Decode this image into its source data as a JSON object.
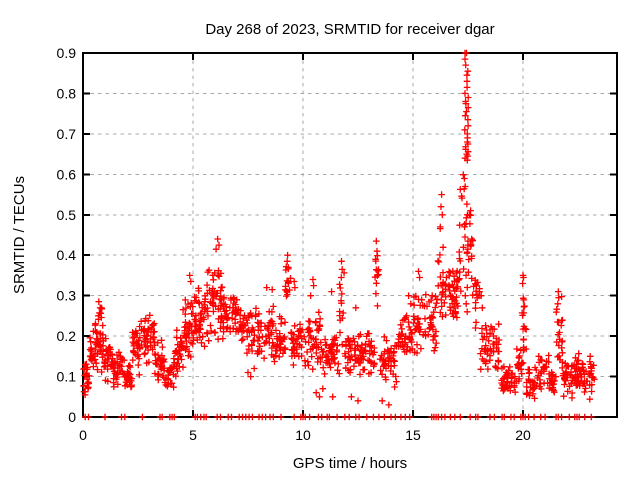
{
  "title": "Day 268 of 2023, SRMTID for receiver dgar",
  "colors": {
    "marker": "#ff0000",
    "grid": "#a8a8a8",
    "axis": "#000000",
    "background": "#ffffff",
    "text": "#000000"
  },
  "chart_data": {
    "type": "scatter",
    "title": "Day 268 of 2023, SRMTID for receiver dgar",
    "xlabel": "GPS time / hours",
    "ylabel": "SRMTID / TECUs",
    "xlim": [
      0,
      24.27
    ],
    "ylim": [
      0,
      0.9
    ],
    "xticks": {
      "values": [
        0,
        5,
        10,
        15,
        20
      ],
      "labels": [
        "0",
        "5",
        "10",
        "15",
        "20"
      ]
    },
    "yticks": {
      "values": [
        0,
        0.1,
        0.2,
        0.3,
        0.4,
        0.5,
        0.6,
        0.7,
        0.8,
        0.9
      ],
      "labels": [
        "0",
        "0.1",
        "0.2",
        "0.3",
        "0.4",
        "0.5",
        "0.6",
        "0.7",
        "0.8",
        "0.9"
      ]
    },
    "grid": true,
    "legend": false,
    "marker": "plus",
    "series_name": "SRMTID",
    "bands_format": [
      "x_start",
      "x_end",
      "count",
      "y_min",
      "y_max"
    ],
    "bands": [
      [
        0.02,
        0.3,
        22,
        0.04,
        0.16
      ],
      [
        0.3,
        0.55,
        18,
        0.08,
        0.22
      ],
      [
        0.55,
        0.95,
        40,
        0.1,
        0.285
      ],
      [
        0.95,
        1.35,
        30,
        0.08,
        0.2
      ],
      [
        1.35,
        1.8,
        32,
        0.07,
        0.17
      ],
      [
        1.8,
        2.25,
        28,
        0.05,
        0.15
      ],
      [
        2.25,
        2.65,
        32,
        0.1,
        0.24
      ],
      [
        2.65,
        3.25,
        42,
        0.12,
        0.27
      ],
      [
        3.25,
        3.65,
        30,
        0.08,
        0.2
      ],
      [
        3.65,
        4.15,
        28,
        0.05,
        0.16
      ],
      [
        4.15,
        4.55,
        28,
        0.07,
        0.22
      ],
      [
        4.55,
        5.0,
        38,
        0.12,
        0.3
      ],
      [
        5.0,
        5.6,
        48,
        0.15,
        0.33
      ],
      [
        5.6,
        6.3,
        52,
        0.18,
        0.41
      ],
      [
        6.3,
        7.0,
        48,
        0.18,
        0.34
      ],
      [
        7.0,
        7.85,
        44,
        0.14,
        0.3
      ],
      [
        7.85,
        8.7,
        48,
        0.13,
        0.29
      ],
      [
        8.7,
        9.2,
        32,
        0.13,
        0.25
      ],
      [
        9.2,
        9.45,
        14,
        0.24,
        0.39
      ],
      [
        9.45,
        10.2,
        42,
        0.12,
        0.24
      ],
      [
        10.2,
        10.8,
        38,
        0.1,
        0.27
      ],
      [
        10.8,
        11.65,
        48,
        0.1,
        0.22
      ],
      [
        11.65,
        11.9,
        13,
        0.15,
        0.37
      ],
      [
        11.9,
        12.6,
        42,
        0.09,
        0.22
      ],
      [
        12.6,
        13.25,
        40,
        0.1,
        0.22
      ],
      [
        13.25,
        13.5,
        11,
        0.24,
        0.42
      ],
      [
        13.5,
        14.3,
        42,
        0.07,
        0.2
      ],
      [
        14.3,
        15.0,
        40,
        0.12,
        0.26
      ],
      [
        15.0,
        15.6,
        34,
        0.14,
        0.33
      ],
      [
        15.6,
        16.1,
        30,
        0.15,
        0.34
      ],
      [
        16.1,
        16.5,
        24,
        0.2,
        0.48
      ],
      [
        16.5,
        17.1,
        40,
        0.22,
        0.4
      ],
      [
        17.1,
        17.45,
        20,
        0.28,
        0.62
      ],
      [
        17.45,
        17.75,
        18,
        0.28,
        0.55
      ],
      [
        17.75,
        18.05,
        16,
        0.2,
        0.42
      ],
      [
        18.05,
        18.95,
        48,
        0.09,
        0.24
      ],
      [
        18.95,
        19.7,
        40,
        0.04,
        0.13
      ],
      [
        19.7,
        19.95,
        16,
        0.08,
        0.2
      ],
      [
        19.95,
        20.15,
        18,
        0.12,
        0.36
      ],
      [
        20.15,
        20.7,
        30,
        0.03,
        0.13
      ],
      [
        20.7,
        21.2,
        26,
        0.05,
        0.17
      ],
      [
        21.2,
        21.5,
        18,
        0.05,
        0.12
      ],
      [
        21.5,
        21.8,
        22,
        0.1,
        0.31
      ],
      [
        21.8,
        22.3,
        30,
        0.04,
        0.15
      ],
      [
        22.3,
        22.75,
        36,
        0.05,
        0.16
      ],
      [
        22.75,
        23.25,
        26,
        0.04,
        0.15
      ]
    ],
    "outliers": [
      [
        0.72,
        0.285
      ],
      [
        0.78,
        0.27
      ],
      [
        4.85,
        0.35
      ],
      [
        4.9,
        0.335
      ],
      [
        6.12,
        0.44
      ],
      [
        6.18,
        0.425
      ],
      [
        6.05,
        0.415
      ],
      [
        7.5,
        0.11
      ],
      [
        7.62,
        0.1
      ],
      [
        7.78,
        0.12
      ],
      [
        8.35,
        0.32
      ],
      [
        8.6,
        0.315
      ],
      [
        9.3,
        0.4
      ],
      [
        9.28,
        0.385
      ],
      [
        9.33,
        0.37
      ],
      [
        9.6,
        0.335
      ],
      [
        9.63,
        0.32
      ],
      [
        10.45,
        0.34
      ],
      [
        10.48,
        0.325
      ],
      [
        10.35,
        0.3
      ],
      [
        10.6,
        0.06
      ],
      [
        10.75,
        0.05
      ],
      [
        10.9,
        0.07
      ],
      [
        11.3,
        0.31
      ],
      [
        11.35,
        0.05
      ],
      [
        11.75,
        0.385
      ],
      [
        11.78,
        0.365
      ],
      [
        11.74,
        0.345
      ],
      [
        12.2,
        0.05
      ],
      [
        12.4,
        0.27
      ],
      [
        12.5,
        0.04
      ],
      [
        13.33,
        0.435
      ],
      [
        13.36,
        0.41
      ],
      [
        13.3,
        0.39
      ],
      [
        13.6,
        0.04
      ],
      [
        13.9,
        0.03
      ],
      [
        14.8,
        0.3
      ],
      [
        14.9,
        0.28
      ],
      [
        15.25,
        0.36
      ],
      [
        15.3,
        0.345
      ],
      [
        16.3,
        0.55
      ],
      [
        16.27,
        0.52
      ],
      [
        16.33,
        0.5
      ],
      [
        16.24,
        0.47
      ],
      [
        18.1,
        0.3
      ],
      [
        18.15,
        0.27
      ],
      [
        20.0,
        0.35
      ],
      [
        20.02,
        0.345
      ],
      [
        19.98,
        0.33
      ],
      [
        21.6,
        0.31
      ],
      [
        21.62,
        0.295
      ],
      [
        21.58,
        0.28
      ],
      [
        23.05,
        0.15
      ],
      [
        23.08,
        0.13
      ]
    ],
    "spike_column": {
      "x": 17.43,
      "x_jitter": 0.08,
      "y_values": [
        0.9,
        0.9,
        0.885,
        0.87,
        0.855,
        0.845,
        0.83,
        0.815,
        0.8,
        0.79,
        0.78,
        0.775,
        0.765,
        0.755,
        0.745,
        0.735,
        0.72,
        0.71,
        0.7,
        0.69,
        0.68,
        0.675,
        0.668,
        0.662,
        0.656,
        0.65,
        0.645,
        0.64,
        0.635,
        0.57,
        0.5,
        0.445,
        0.435,
        0.425,
        0.415,
        0.405,
        0.35,
        0.3,
        0.28,
        0.26
      ]
    },
    "zero_marker_x": [
      0.1,
      0.25,
      1.0,
      1.75,
      1.9,
      2.7,
      3.5,
      3.6,
      3.95,
      4.05,
      4.15,
      5.1,
      5.2,
      5.35,
      5.5,
      5.6,
      6.1,
      6.25,
      6.6,
      6.75,
      7.1,
      7.25,
      7.4,
      7.55,
      7.7,
      8.0,
      8.15,
      8.3,
      8.5,
      8.65,
      9.0,
      9.6,
      9.9,
      10.0,
      10.1,
      10.3,
      10.7,
      10.85,
      11.1,
      11.2,
      11.55,
      11.9,
      12.1,
      12.4,
      12.55,
      12.9,
      13.2,
      13.45,
      13.7,
      14.0,
      14.2,
      14.45,
      14.65,
      14.85,
      15.85,
      15.95,
      16.05,
      16.15,
      16.3,
      16.45,
      16.7,
      16.9,
      17.15,
      17.6,
      17.85,
      17.95,
      18.5,
      18.7,
      19.05,
      19.15,
      19.45,
      19.6,
      19.9,
      20.0,
      20.1,
      20.25,
      20.5,
      20.8,
      21.0,
      21.5,
      21.6,
      21.75,
      22.1,
      22.35,
      22.45,
      22.55,
      22.8,
      23.1
    ]
  }
}
